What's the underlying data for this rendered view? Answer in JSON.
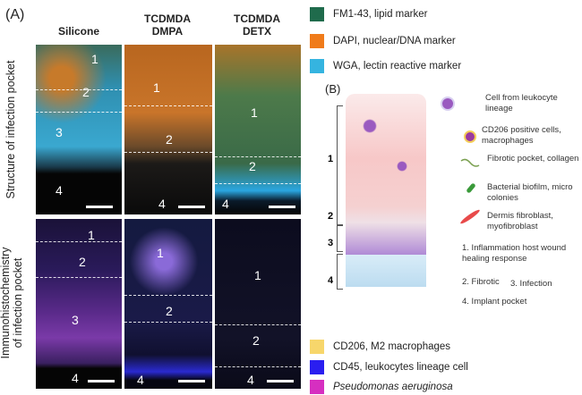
{
  "panel_a": {
    "label": "(A)",
    "columns": [
      "Silicone",
      "TCDMDA\nDMPA",
      "TCDMDA\nDETX"
    ],
    "rows": [
      "Structure of infection pocket",
      "Immunohistochemistry\nof infection pocket"
    ],
    "zone_labels": [
      "1",
      "2",
      "3",
      "4"
    ]
  },
  "legend_top": [
    {
      "label": "FM1-43, lipid marker",
      "color": "#1f6b4c"
    },
    {
      "label": "DAPI, nuclear/DNA marker",
      "color": "#f07b1a"
    },
    {
      "label": "WGA, lectin reactive marker",
      "color": "#35b4e0"
    }
  ],
  "panel_b": {
    "label": "(B)",
    "zones": [
      "1",
      "2",
      "3",
      "4"
    ],
    "items": [
      {
        "label": "Cell from leukocyte lineage",
        "icon": "leukocyte-cell-icon"
      },
      {
        "label": "CD206 positive cells, macrophages",
        "icon": "macrophage-icon"
      },
      {
        "label": "Fibrotic pocket, collagen",
        "icon": "collagen-fiber-icon"
      },
      {
        "label": "Bacterial biofilm, micro colonies",
        "icon": "bacteria-icon"
      },
      {
        "label": "Dermis fibroblast, myofibroblast",
        "icon": "fibroblast-icon"
      }
    ],
    "zone_desc": [
      "1. Inflammation host wound healing response",
      "2. Fibrotic",
      "3. Infection",
      "4. Implant pocket"
    ]
  },
  "legend_bottom": [
    {
      "label": "CD206, M2 macrophages",
      "color": "#f7d66b"
    },
    {
      "label": "CD45, leukocytes lineage cell",
      "color": "#2a1ef0"
    },
    {
      "label": "Pseudomonas aeruginosa",
      "color": "#d62fc0"
    }
  ]
}
